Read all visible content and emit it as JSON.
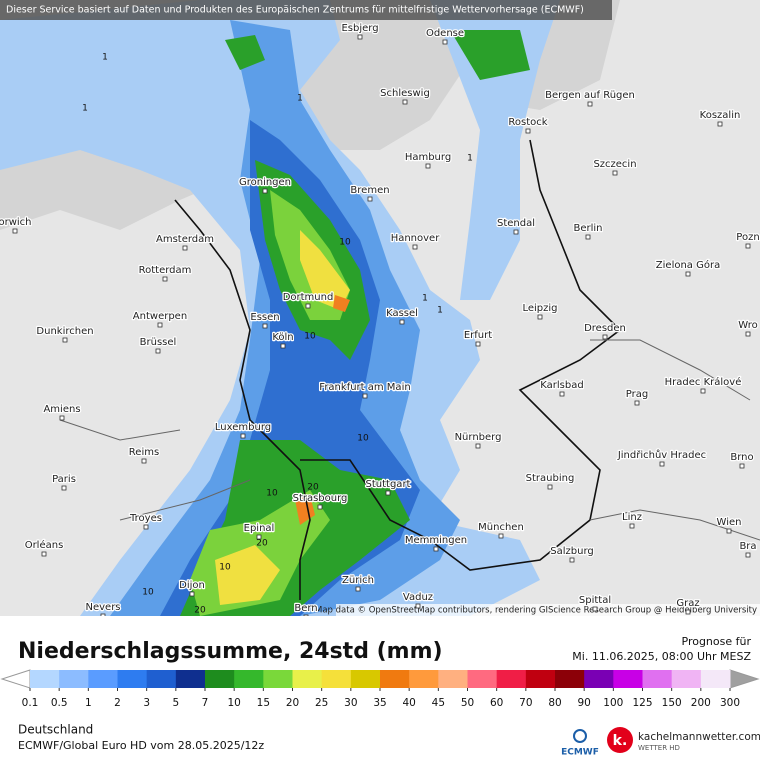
{
  "header": {
    "notice": "Dieser Service basiert auf Daten und Produkten des Europäischen Zentrums für mittelfristige Wettervorhersage (ECMWF)"
  },
  "map": {
    "cities": [
      "Esbjerg",
      "Odense",
      "Schleswig",
      "Bergen auf Rügen",
      "Rostock",
      "Koszalin",
      "Hamburg",
      "Szczecin",
      "Groningen",
      "Bremen",
      "orwich",
      "Amsterdam",
      "Hannover",
      "Berlin",
      "Stendal",
      "Zielona Góra",
      "Pozn",
      "Rotterdam",
      "Dortmund",
      "Leipzig",
      "Essen",
      "Kassel",
      "Erfurt",
      "Dresden",
      "Antwerpen",
      "Dunkirchen",
      "Köln",
      "Brüssel",
      "Wro",
      "Frankfurt am Main",
      "Karlsbad",
      "Hradec Králové",
      "Prag",
      "Amiens",
      "Luxemburg",
      "Nürnberg",
      "Jindřichův Hradec",
      "Brno",
      "Reims",
      "Paris",
      "Stuttgart",
      "Straubing",
      "Strasbourg",
      "Troyes",
      "Linz",
      "Wien",
      "München",
      "Epinal",
      "Memmingen",
      "Orléans",
      "Salzburg",
      "Bra",
      "Zürich",
      "Vaduz",
      "Dijon",
      "Nevers",
      "Bern",
      "Spittal",
      "Graz"
    ],
    "contour_labels": [
      "1",
      "1",
      "1",
      "1",
      "10",
      "10",
      "10",
      "10",
      "20",
      "20",
      "10",
      "20",
      "1",
      "1",
      "10"
    ],
    "attribution": "Map data © OpenStreetMap contributors, rendering GIScience Research Group @ Heidelberg University"
  },
  "legend": {
    "title": "Niederschlagssumme, 24std (mm)",
    "forecast_label": "Prognose für",
    "forecast_time": "Mi. 11.06.2025, 08:00 Uhr MESZ",
    "ticks": [
      0.1,
      0.5,
      1,
      2,
      3,
      5,
      7,
      10,
      15,
      20,
      25,
      30,
      35,
      40,
      45,
      50,
      60,
      70,
      80,
      90,
      100,
      125,
      150,
      200,
      300
    ],
    "colors": [
      "#b4d7ff",
      "#8cbcff",
      "#5a9cff",
      "#2e7cf0",
      "#1f5fd0",
      "#0f2f8f",
      "#1e8c1e",
      "#35b82c",
      "#7ad83a",
      "#e8f04a",
      "#f5e03a",
      "#d8c800",
      "#f07a10",
      "#ff9a3c",
      "#ffb080",
      "#ff6a80",
      "#f01e46",
      "#c00010",
      "#8c0008",
      "#7a00b4",
      "#c800e6",
      "#e070f0",
      "#f0b4f4",
      "#f4e8f8"
    ]
  },
  "footer": {
    "region": "Deutschland",
    "model": "ECMWF/Global Euro HD vom  28.05.2025/12z",
    "ecmwf_logo": "ECMWF",
    "site": "kachelmannwetter.com",
    "site_sub": "WETTER HD"
  }
}
